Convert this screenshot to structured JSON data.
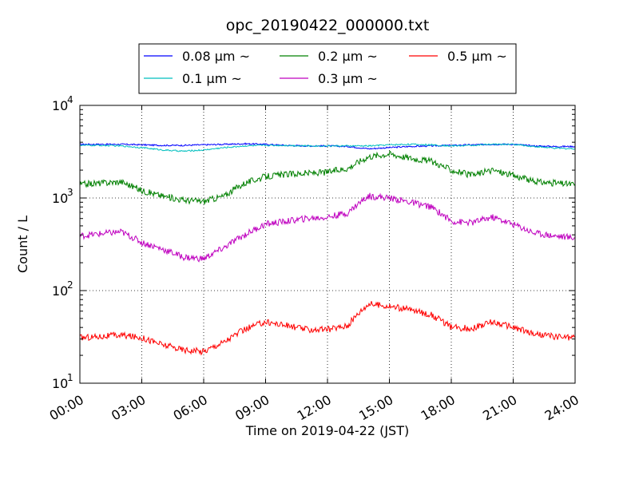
{
  "chart_data": {
    "type": "line",
    "title": "opc_20190422_000000.txt",
    "xlabel": "Time on 2019-04-22 (JST)",
    "ylabel": "Count / L",
    "x_unit": "hours",
    "xlim": [
      0,
      24
    ],
    "ylim": [
      10,
      10000
    ],
    "yscale": "log",
    "grid": true,
    "legend_position": "top-center",
    "x_tick_labels": [
      "00:00",
      "03:00",
      "06:00",
      "09:00",
      "12:00",
      "15:00",
      "18:00",
      "21:00",
      "24:00"
    ],
    "y_tick_labels": [
      {
        "base": "10",
        "exp": "1"
      },
      {
        "base": "10",
        "exp": "2"
      },
      {
        "base": "10",
        "exp": "3"
      },
      {
        "base": "10",
        "exp": "4"
      }
    ],
    "x": [
      0,
      1,
      2,
      3,
      4,
      5,
      6,
      7,
      8,
      9,
      10,
      11,
      12,
      13,
      14,
      15,
      16,
      17,
      18,
      19,
      20,
      21,
      22,
      23,
      24
    ],
    "series": [
      {
        "name": "0.08 μm ~",
        "color": "#0000ff",
        "values": [
          3800,
          3800,
          3800,
          3750,
          3700,
          3700,
          3750,
          3800,
          3850,
          3800,
          3700,
          3650,
          3650,
          3600,
          3400,
          3500,
          3600,
          3650,
          3700,
          3750,
          3800,
          3800,
          3650,
          3600,
          3600
        ]
      },
      {
        "name": "0.1 μm ~",
        "color": "#00bfbf",
        "values": [
          3700,
          3700,
          3650,
          3500,
          3300,
          3200,
          3300,
          3500,
          3650,
          3700,
          3700,
          3650,
          3650,
          3650,
          3650,
          3750,
          3800,
          3750,
          3650,
          3700,
          3800,
          3800,
          3600,
          3450,
          3400
        ]
      },
      {
        "name": "0.2 μm ~",
        "color": "#008000",
        "values": [
          1400,
          1450,
          1500,
          1200,
          1050,
          950,
          920,
          1050,
          1450,
          1700,
          1800,
          1850,
          1900,
          2100,
          2800,
          3000,
          2700,
          2500,
          2000,
          1750,
          2000,
          1750,
          1500,
          1450,
          1400
        ]
      },
      {
        "name": "0.3 μm ~",
        "color": "#bf00bf",
        "values": [
          390,
          410,
          430,
          330,
          280,
          230,
          220,
          290,
          400,
          520,
          560,
          600,
          620,
          690,
          1050,
          1000,
          900,
          800,
          560,
          540,
          620,
          520,
          420,
          390,
          370
        ]
      },
      {
        "name": "0.5 μm ~",
        "color": "#ff0000",
        "values": [
          31,
          32,
          33,
          31,
          26,
          23,
          22,
          28,
          38,
          46,
          42,
          38,
          38,
          42,
          72,
          68,
          62,
          55,
          40,
          39,
          46,
          40,
          34,
          32,
          31
        ]
      }
    ]
  }
}
